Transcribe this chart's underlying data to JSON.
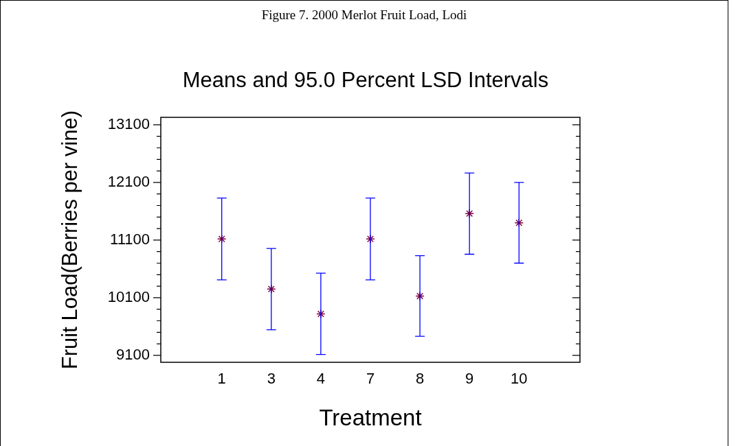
{
  "chart_data": {
    "type": "scatter",
    "title": "Figure 7.  2000 Merlot Fruit Load, Lodi",
    "subtitle": "Means and 95.0 Percent LSD Intervals",
    "xlabel": "Treatment",
    "ylabel": "Fruit Load(Berries per vine)",
    "categories": [
      "1",
      "3",
      "4",
      "7",
      "8",
      "9",
      "10"
    ],
    "series": [
      {
        "color": "#800040",
        "values": [
          11120,
          10250,
          9820,
          11120,
          10130,
          11560,
          11400
        ],
        "errors": [
          710,
          705,
          705,
          710,
          700,
          705,
          700
        ]
      }
    ],
    "marker": "cross",
    "grid": false,
    "legend": false,
    "ylim": [
      8980,
      13230
    ],
    "yticks": [
      9100,
      {
        "value": 9300,
        "label": null
      },
      {
        "value": 9500,
        "label": null
      },
      {
        "value": 9700,
        "label": null
      },
      {
        "value": 9900,
        "label": null
      },
      10100,
      {
        "value": 10300,
        "label": null
      },
      {
        "value": 10500,
        "label": null
      },
      {
        "value": 10700,
        "label": null
      },
      {
        "value": 10900,
        "label": null
      },
      11100,
      {
        "value": 11300,
        "label": null
      },
      {
        "value": 11500,
        "label": null
      },
      {
        "value": 11700,
        "label": null
      },
      {
        "value": 11900,
        "label": null
      },
      12100,
      {
        "value": 12300,
        "label": null
      },
      {
        "value": 12500,
        "label": null
      },
      {
        "value": 12700,
        "label": null
      },
      {
        "value": 12900,
        "label": null
      },
      13100
    ]
  }
}
